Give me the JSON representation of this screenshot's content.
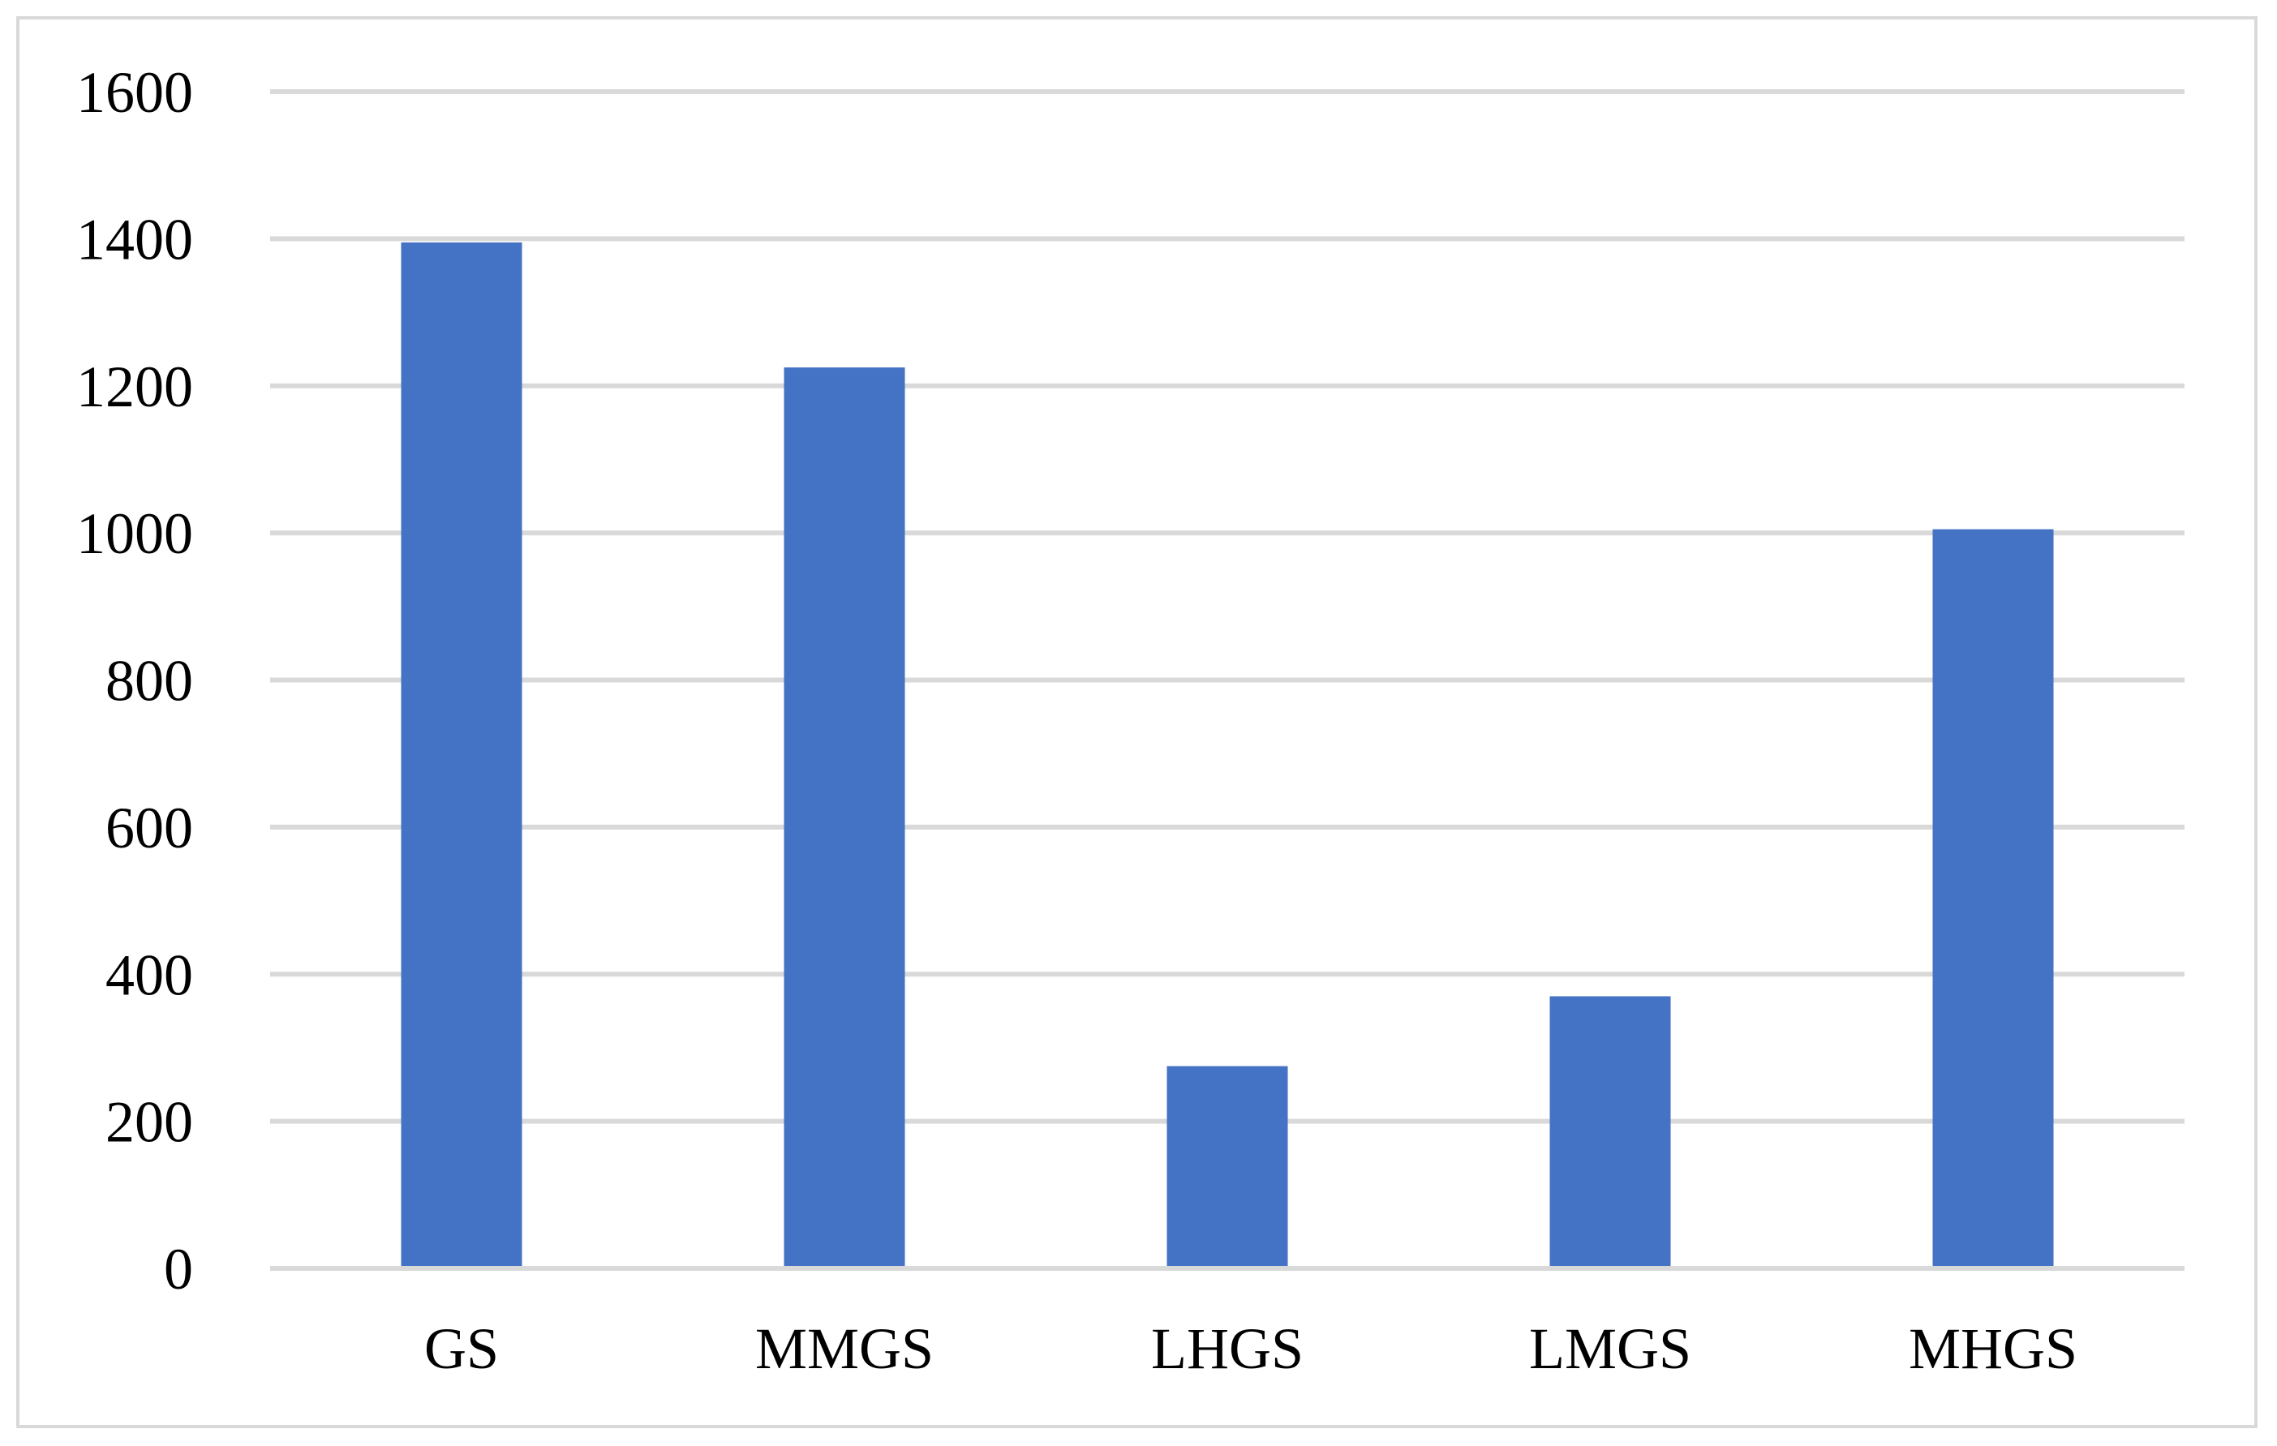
{
  "chart_data": {
    "type": "bar",
    "title": "",
    "xlabel": "",
    "ylabel": "",
    "categories": [
      "GS",
      "MMGS",
      "LHGS",
      "LMGS",
      "MHGS"
    ],
    "values": [
      1395,
      1225,
      275,
      370,
      1005
    ],
    "ylim": [
      0,
      1600
    ],
    "yticks": [
      0,
      200,
      400,
      600,
      800,
      1000,
      1200,
      1400,
      1600
    ],
    "grid": true,
    "legend": "none",
    "bar_color": "#4472c4",
    "grid_color": "#d9d9d9",
    "border_color": "#d9d9d9"
  }
}
